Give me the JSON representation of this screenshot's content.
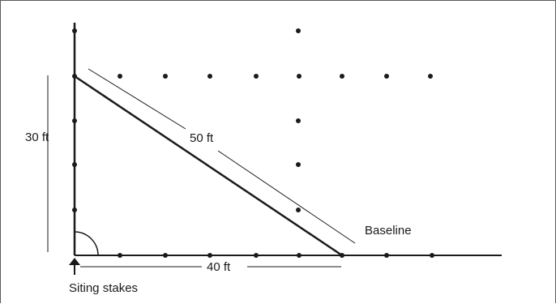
{
  "diagram": {
    "labels": {
      "height": "30 ft",
      "hypotenuse": "50 ft",
      "base": "40 ft",
      "baseline": "Baseline",
      "stakes": "Siting stakes"
    },
    "colors": {
      "ink": "#1a1a1a",
      "frame": "#5a5a5a"
    }
  }
}
